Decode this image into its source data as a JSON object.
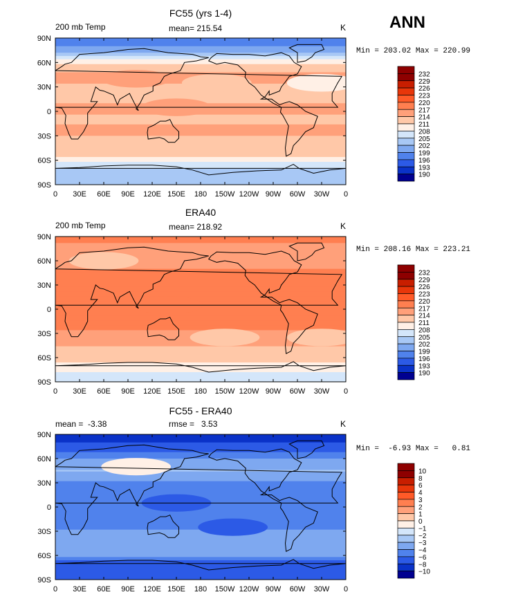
{
  "season": "ANN",
  "chart_data": [
    {
      "type": "heatmap",
      "title": "FC55 (yrs 1-4)",
      "subtitle_left": "200 mb Temp",
      "subtitle_center": "mean= 215.54",
      "units": "K",
      "min_max": "Min = 203.02 Max = 220.99",
      "min": 203.02,
      "max": 220.99,
      "mean": 215.54,
      "xticks": [
        "0",
        "30E",
        "60E",
        "90E",
        "120E",
        "150E",
        "180",
        "150W",
        "120W",
        "90W",
        "60W",
        "30W",
        "0"
      ],
      "yticks": [
        "90N",
        "60N",
        "30N",
        "0",
        "30S",
        "60S",
        "90S"
      ],
      "levels": [
        "232",
        "229",
        "226",
        "223",
        "220",
        "217",
        "214",
        "211",
        "208",
        "205",
        "202",
        "199",
        "196",
        "193",
        "190"
      ],
      "colors": [
        "#8e0000",
        "#c81e00",
        "#e8360a",
        "#ff5a28",
        "#ff7f50",
        "#ffa07a",
        "#ffc8a8",
        "#fff0e6",
        "#d4e6fa",
        "#a8c8f5",
        "#7ea8f0",
        "#5082ec",
        "#2c5ae6",
        "#0a32c8",
        "#000090"
      ],
      "zonal": [
        {
          "lat": 85,
          "value": 201
        },
        {
          "lat": 75,
          "value": 203
        },
        {
          "lat": 65,
          "value": 210
        },
        {
          "lat": 55,
          "value": 215.5
        },
        {
          "lat": 45,
          "value": 217.5
        },
        {
          "lat": 35,
          "value": 217
        },
        {
          "lat": 20,
          "value": 216.2
        },
        {
          "lat": 5,
          "value": 217.3
        },
        {
          "lat": -10,
          "value": 216.8
        },
        {
          "lat": -25,
          "value": 217.3
        },
        {
          "lat": -40,
          "value": 216.2
        },
        {
          "lat": -50,
          "value": 215.8
        },
        {
          "lat": -58,
          "value": 213
        },
        {
          "lat": -65,
          "value": 210
        },
        {
          "lat": -72,
          "value": 207
        },
        {
          "lat": -82,
          "value": 205
        }
      ],
      "features": [
        {
          "lon": 100,
          "lat": 40,
          "value": 219.5
        },
        {
          "lon": 200,
          "lat": 35,
          "value": 214
        },
        {
          "lon": 330,
          "lat": 35,
          "value": 213.5
        },
        {
          "lon": 150,
          "lat": 5,
          "value": 218.5
        }
      ]
    },
    {
      "type": "heatmap",
      "title": "ERA40",
      "subtitle_left": "200 mb Temp",
      "subtitle_center": "mean= 218.92",
      "units": "K",
      "min_max": "Min = 208.16 Max = 223.21",
      "min": 208.16,
      "max": 223.21,
      "mean": 218.92,
      "xticks": [
        "0",
        "30E",
        "60E",
        "90E",
        "120E",
        "150E",
        "180",
        "150W",
        "120W",
        "90W",
        "60W",
        "30W",
        "0"
      ],
      "yticks": [
        "90N",
        "60N",
        "30N",
        "0",
        "30S",
        "60S",
        "90S"
      ],
      "levels": [
        "232",
        "229",
        "226",
        "223",
        "220",
        "217",
        "214",
        "211",
        "208",
        "205",
        "202",
        "199",
        "196",
        "193",
        "190"
      ],
      "colors": [
        "#8e0000",
        "#c81e00",
        "#e8360a",
        "#ff5a28",
        "#ff7f50",
        "#ffa07a",
        "#ffc8a8",
        "#fff0e6",
        "#d4e6fa",
        "#a8c8f5",
        "#7ea8f0",
        "#5082ec",
        "#2c5ae6",
        "#0a32c8",
        "#000090"
      ],
      "zonal": [
        {
          "lat": 85,
          "value": 220.5
        },
        {
          "lat": 75,
          "value": 219
        },
        {
          "lat": 65,
          "value": 218
        },
        {
          "lat": 55,
          "value": 219
        },
        {
          "lat": 45,
          "value": 221
        },
        {
          "lat": 35,
          "value": 220.5
        },
        {
          "lat": 20,
          "value": 220.5
        },
        {
          "lat": 5,
          "value": 221.2
        },
        {
          "lat": -10,
          "value": 220.8
        },
        {
          "lat": -25,
          "value": 220
        },
        {
          "lat": -40,
          "value": 218
        },
        {
          "lat": -50,
          "value": 216
        },
        {
          "lat": -58,
          "value": 215
        },
        {
          "lat": -65,
          "value": 214
        },
        {
          "lat": -72,
          "value": 212
        },
        {
          "lat": -82,
          "value": 210
        }
      ],
      "features": [
        {
          "lon": 60,
          "lat": 60,
          "value": 216
        },
        {
          "lon": 210,
          "lat": -35,
          "value": 216
        },
        {
          "lon": 330,
          "lat": -35,
          "value": 216
        },
        {
          "lon": 140,
          "lat": 5,
          "value": 222
        }
      ]
    },
    {
      "type": "heatmap",
      "title": "FC55 - ERA40",
      "subtitle_left": "mean =  -3.38",
      "subtitle_center": "rmse =   3.53",
      "units": "K",
      "min_max": "Min =  -6.93 Max =   0.81",
      "min": -6.93,
      "max": 0.81,
      "mean": -3.38,
      "rmse": 3.53,
      "xticks": [
        "0",
        "30E",
        "60E",
        "90E",
        "120E",
        "150E",
        "180",
        "150W",
        "120W",
        "90W",
        "60W",
        "30W",
        "0"
      ],
      "yticks": [
        "90N",
        "60N",
        "30N",
        "0",
        "30S",
        "60S",
        "90S"
      ],
      "levels": [
        "10",
        "8",
        "6",
        "4",
        "3",
        "2",
        "1",
        "0",
        "−1",
        "−2",
        "−3",
        "−4",
        "−6",
        "−8",
        "−10"
      ],
      "colors": [
        "#8e0000",
        "#c81e00",
        "#e8360a",
        "#ff5a28",
        "#ff7f50",
        "#ffa07a",
        "#ffc8a8",
        "#fff0e6",
        "#d4e6fa",
        "#a8c8f5",
        "#7ea8f0",
        "#5082ec",
        "#2c5ae6",
        "#0a32c8",
        "#000090"
      ],
      "zonal": [
        {
          "lat": 85,
          "value": -6.5
        },
        {
          "lat": 75,
          "value": -5.5
        },
        {
          "lat": 65,
          "value": -3.5
        },
        {
          "lat": 55,
          "value": -2.5
        },
        {
          "lat": 45,
          "value": -2.0
        },
        {
          "lat": 35,
          "value": -2.8
        },
        {
          "lat": 20,
          "value": -3.8
        },
        {
          "lat": 5,
          "value": -4.0
        },
        {
          "lat": -10,
          "value": -3.5
        },
        {
          "lat": -25,
          "value": -3.2
        },
        {
          "lat": -40,
          "value": -2.2
        },
        {
          "lat": -50,
          "value": -3.0
        },
        {
          "lat": -58,
          "value": -2.0
        },
        {
          "lat": -65,
          "value": -4.0
        },
        {
          "lat": -72,
          "value": -5.0
        },
        {
          "lat": -82,
          "value": -6.0
        }
      ],
      "features": [
        {
          "lon": 100,
          "lat": 50,
          "value": 0.5
        },
        {
          "lon": 220,
          "lat": -25,
          "value": -4.5
        },
        {
          "lon": 150,
          "lat": 5,
          "value": -4.5
        }
      ]
    }
  ]
}
